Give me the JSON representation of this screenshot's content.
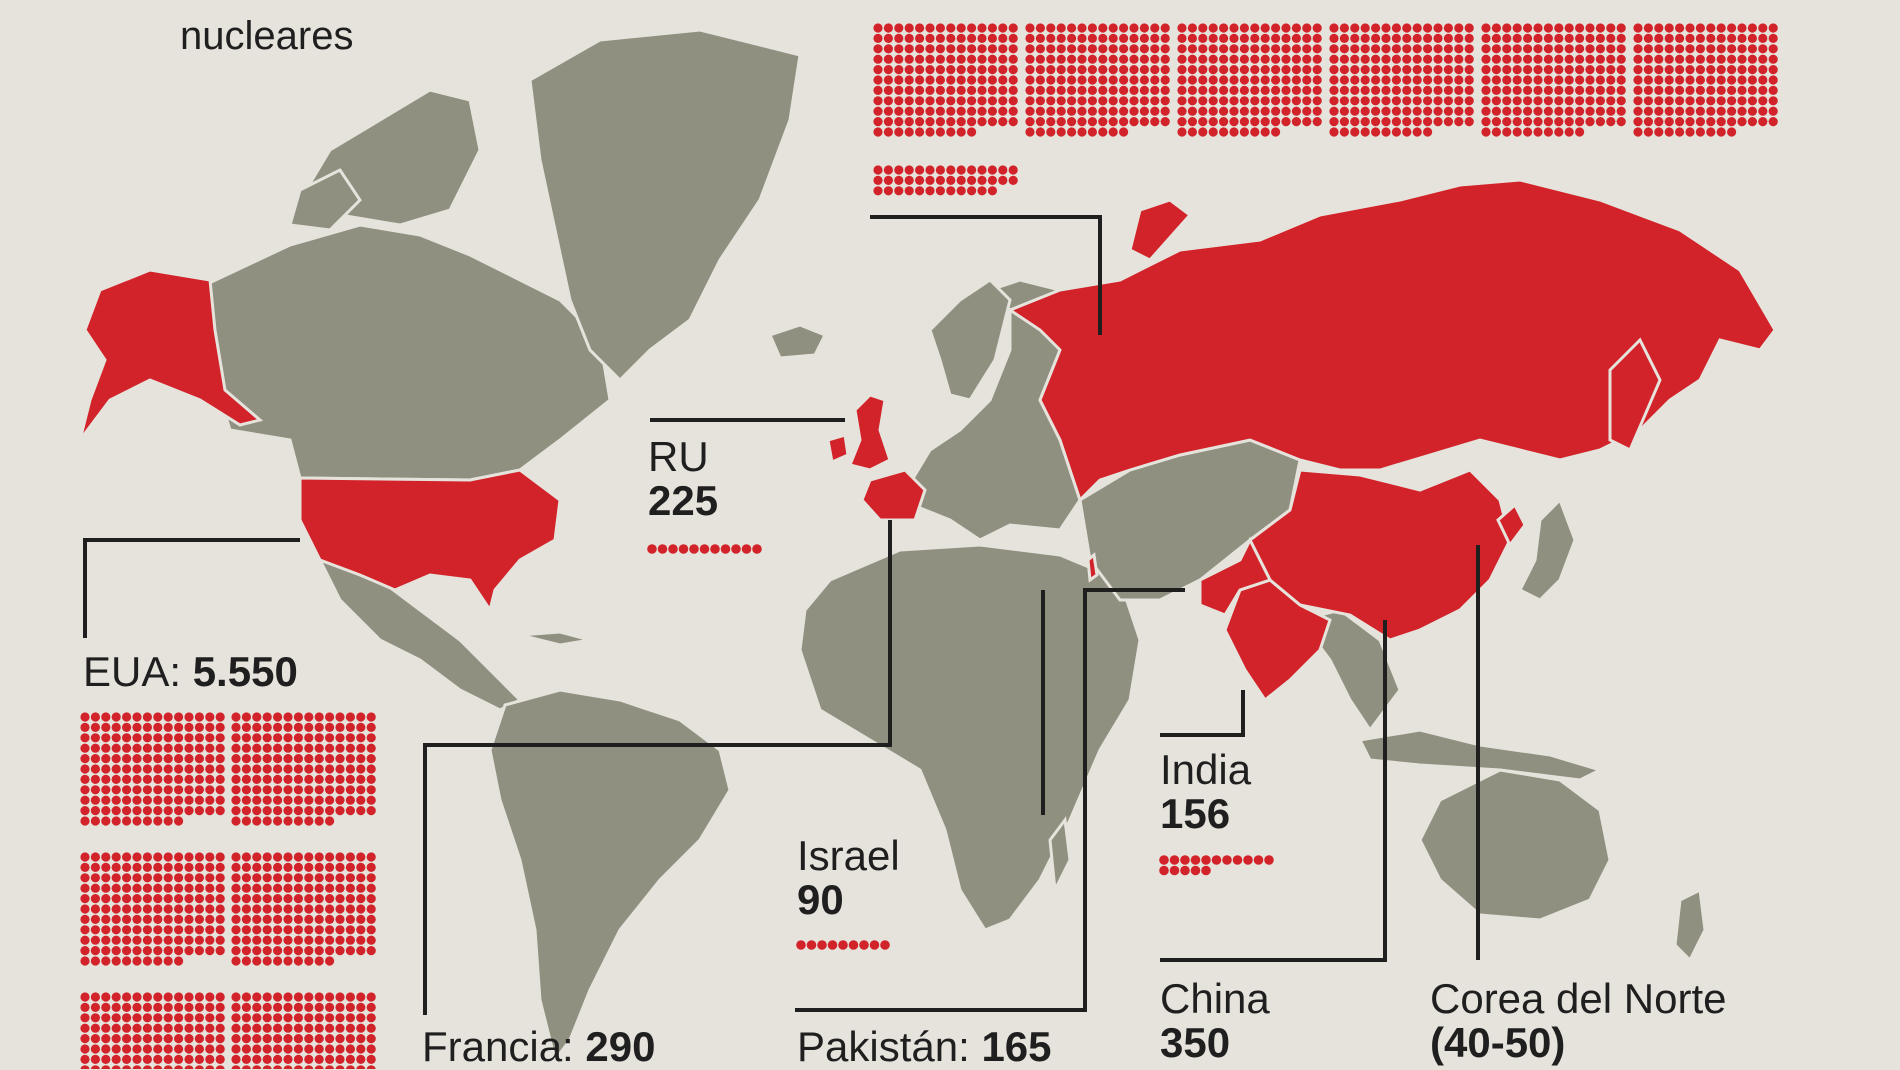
{
  "header": {
    "title_fragment": "nucleares"
  },
  "colors": {
    "nuclear": "#d2232a",
    "land": "#8f907f",
    "background": "#e6e3dc",
    "leader": "#1f1f1f",
    "text": "#1f1f1f"
  },
  "countries": [
    {
      "id": "rusia",
      "name": "",
      "value": "",
      "dots": 150
    },
    {
      "id": "eua",
      "name": "EUA:",
      "value": "5.550",
      "dots": 150
    },
    {
      "id": "ru",
      "name": "RU",
      "value": "225",
      "dots": 11
    },
    {
      "id": "israel",
      "name": "Israel",
      "value": "90",
      "dots": 9
    },
    {
      "id": "india",
      "name": "India",
      "value": "156",
      "dots": 16
    },
    {
      "id": "francia",
      "name": "Francia:",
      "value": "290",
      "dots": 0
    },
    {
      "id": "pakistan",
      "name": "Pakistán:",
      "value": "165",
      "dots": 0
    },
    {
      "id": "china",
      "name": "China",
      "value": "350",
      "dots": 0
    },
    {
      "id": "corea",
      "name": "Corea del Norte",
      "value": "(40-50)",
      "dots": 0
    }
  ]
}
